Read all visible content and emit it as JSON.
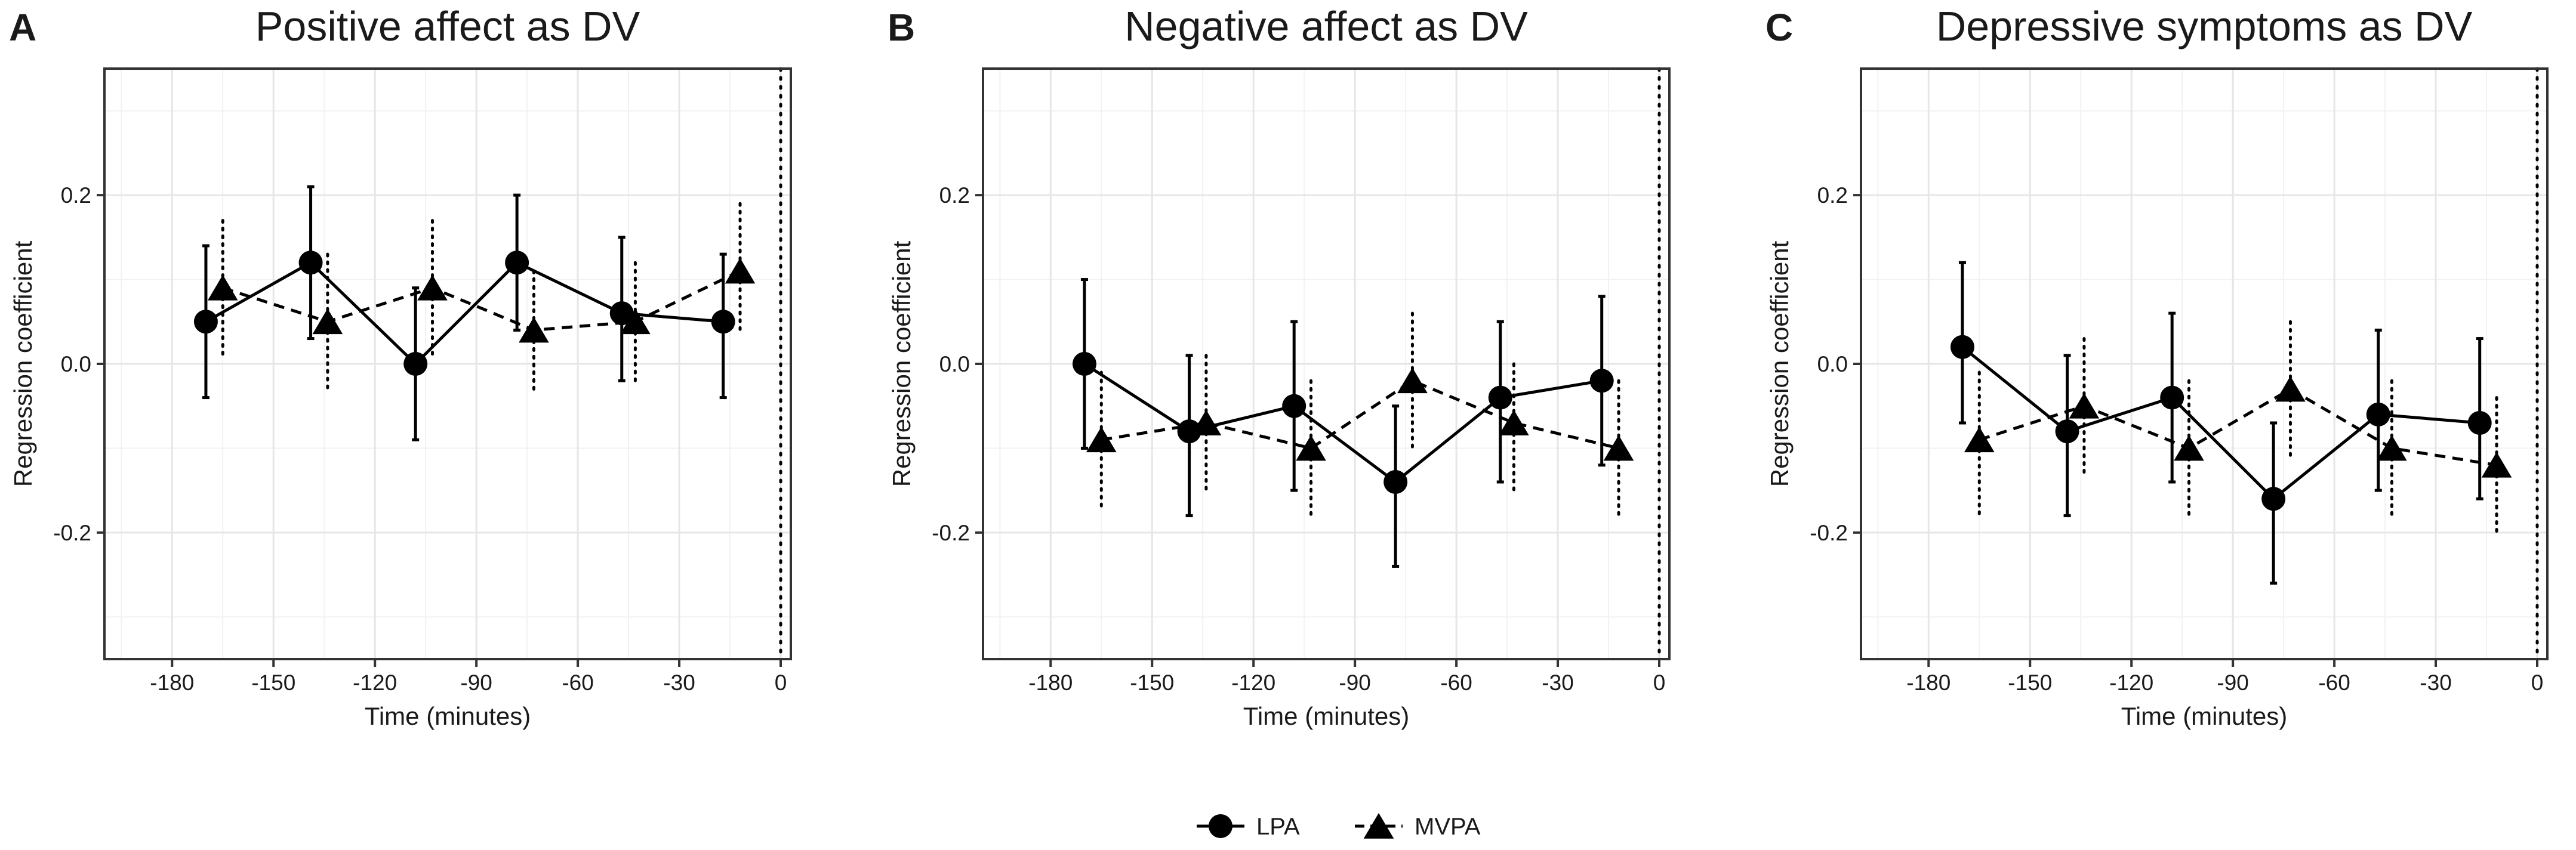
{
  "chart_data": [
    {
      "panel_label": "A",
      "type": "line",
      "title": "Positive affect as DV",
      "xlabel": "Time (minutes)",
      "ylabel": "Regression coefficient",
      "xlim": [
        -200,
        3
      ],
      "ylim": [
        -0.35,
        0.35
      ],
      "xticks": [
        -180,
        -150,
        -120,
        -90,
        -60,
        -30,
        0
      ],
      "yticks": [
        -0.2,
        0.0,
        0.2
      ],
      "ytick_labels": [
        "-0.2",
        "0.0",
        "0.2"
      ],
      "grid": true,
      "reference_line_x": 0,
      "series": [
        {
          "name": "LPA",
          "marker": "circle",
          "linestyle": "solid",
          "x": [
            -170,
            -139,
            -108,
            -78,
            -47,
            -17
          ],
          "y": [
            0.05,
            0.12,
            0.0,
            0.12,
            0.06,
            0.05
          ],
          "lower": [
            -0.04,
            0.03,
            -0.09,
            0.04,
            -0.02,
            -0.04
          ],
          "upper": [
            0.14,
            0.21,
            0.09,
            0.2,
            0.15,
            0.13
          ]
        },
        {
          "name": "MVPA",
          "marker": "triangle",
          "linestyle": "dashed",
          "x": [
            -165,
            -134,
            -103,
            -73,
            -43,
            -12
          ],
          "y": [
            0.09,
            0.05,
            0.09,
            0.04,
            0.05,
            0.11
          ],
          "lower": [
            0.01,
            -0.03,
            0.01,
            -0.03,
            -0.02,
            0.04
          ],
          "upper": [
            0.17,
            0.13,
            0.17,
            0.11,
            0.12,
            0.19
          ]
        }
      ]
    },
    {
      "panel_label": "B",
      "type": "line",
      "title": "Negative affect as DV",
      "xlabel": "Time (minutes)",
      "ylabel": "Regression coefficient",
      "xlim": [
        -200,
        3
      ],
      "ylim": [
        -0.35,
        0.35
      ],
      "xticks": [
        -180,
        -150,
        -120,
        -90,
        -60,
        -30,
        0
      ],
      "yticks": [
        -0.2,
        0.0,
        0.2
      ],
      "ytick_labels": [
        "-0.2",
        "0.0",
        "0.2"
      ],
      "grid": true,
      "reference_line_x": 0,
      "series": [
        {
          "name": "LPA",
          "marker": "circle",
          "linestyle": "solid",
          "x": [
            -170,
            -139,
            -108,
            -78,
            -47,
            -17
          ],
          "y": [
            0.0,
            -0.08,
            -0.05,
            -0.14,
            -0.04,
            -0.02
          ],
          "lower": [
            -0.1,
            -0.18,
            -0.15,
            -0.24,
            -0.14,
            -0.12
          ],
          "upper": [
            0.1,
            0.01,
            0.05,
            -0.05,
            0.05,
            0.08
          ]
        },
        {
          "name": "MVPA",
          "marker": "triangle",
          "linestyle": "dashed",
          "x": [
            -165,
            -134,
            -103,
            -73,
            -43,
            -12
          ],
          "y": [
            -0.09,
            -0.07,
            -0.1,
            -0.02,
            -0.07,
            -0.1
          ],
          "lower": [
            -0.17,
            -0.15,
            -0.18,
            -0.1,
            -0.15,
            -0.18
          ],
          "upper": [
            -0.01,
            0.01,
            -0.02,
            0.06,
            0.0,
            -0.02
          ]
        }
      ]
    },
    {
      "panel_label": "C",
      "type": "line",
      "title": "Depressive symptoms as DV",
      "xlabel": "Time (minutes)",
      "ylabel": "Regression coefficient",
      "xlim": [
        -200,
        3
      ],
      "ylim": [
        -0.35,
        0.35
      ],
      "xticks": [
        -180,
        -150,
        -120,
        -90,
        -60,
        -30,
        0
      ],
      "yticks": [
        -0.2,
        0.0,
        0.2
      ],
      "ytick_labels": [
        "-0.2",
        "0.0",
        "0.2"
      ],
      "grid": true,
      "reference_line_x": 0,
      "series": [
        {
          "name": "LPA",
          "marker": "circle",
          "linestyle": "solid",
          "x": [
            -170,
            -139,
            -108,
            -78,
            -47,
            -17
          ],
          "y": [
            0.02,
            -0.08,
            -0.04,
            -0.16,
            -0.06,
            -0.07
          ],
          "lower": [
            -0.07,
            -0.18,
            -0.14,
            -0.26,
            -0.15,
            -0.16
          ],
          "upper": [
            0.12,
            0.01,
            0.06,
            -0.07,
            0.04,
            0.03
          ]
        },
        {
          "name": "MVPA",
          "marker": "triangle",
          "linestyle": "dashed",
          "x": [
            -165,
            -134,
            -103,
            -73,
            -43,
            -12
          ],
          "y": [
            -0.09,
            -0.05,
            -0.1,
            -0.03,
            -0.1,
            -0.12
          ],
          "lower": [
            -0.18,
            -0.13,
            -0.18,
            -0.11,
            -0.18,
            -0.2
          ],
          "upper": [
            -0.01,
            0.03,
            -0.02,
            0.05,
            -0.02,
            -0.04
          ]
        }
      ]
    }
  ],
  "legend": {
    "position": "bottom-center",
    "items": [
      {
        "label": "LPA",
        "marker": "circle",
        "linestyle": "solid"
      },
      {
        "label": "MVPA",
        "marker": "triangle",
        "linestyle": "dashed"
      }
    ]
  },
  "colors": {
    "ink": "#000000",
    "grid_major": "#e6e6e6",
    "grid_minor": "#f2f2f2",
    "panel_border": "#333333"
  }
}
